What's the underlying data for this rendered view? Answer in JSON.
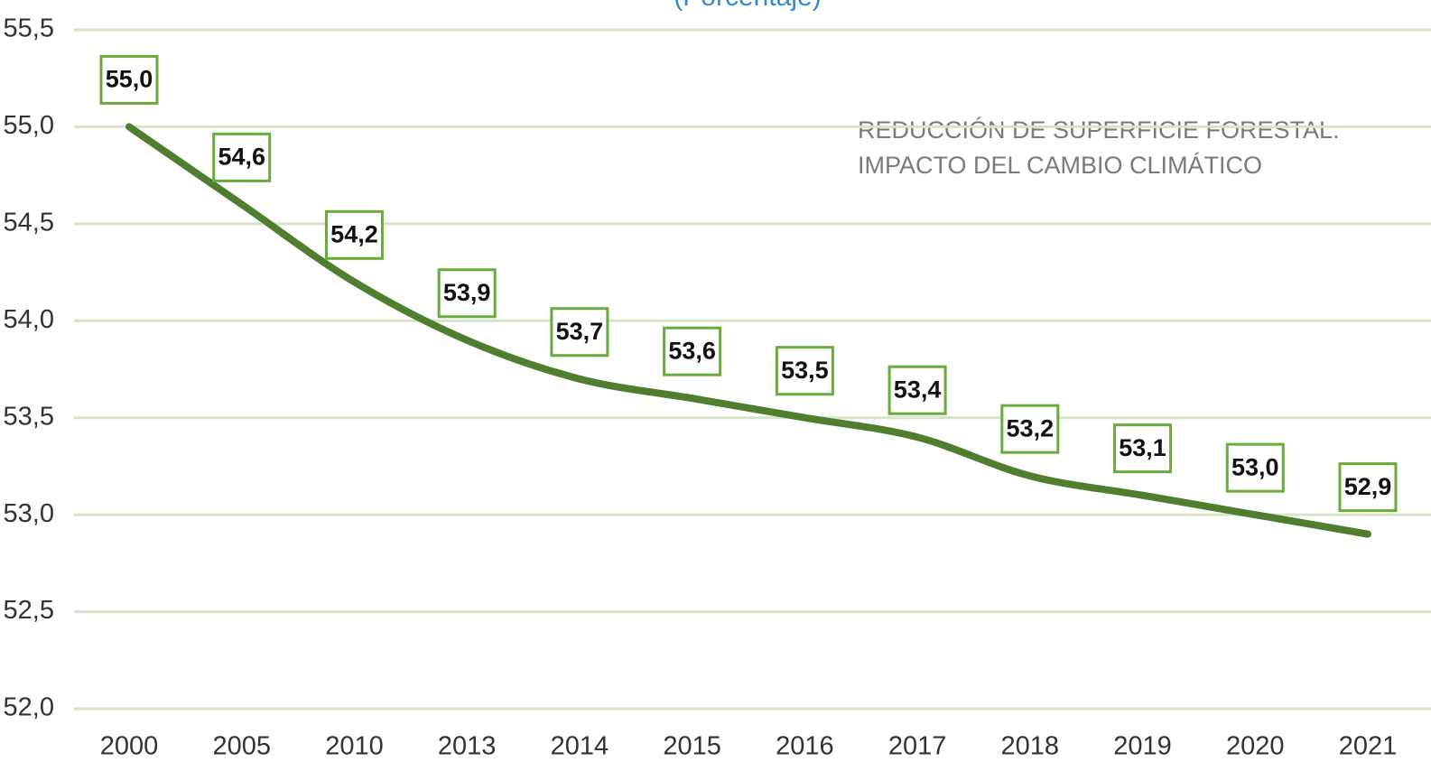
{
  "chart_data": {
    "type": "line",
    "subtitle": "(Porcentaje)",
    "annotation": [
      "REDUCCIÓN DE SUPERFICIE FORESTAL:",
      "IMPACTO DEL CAMBIO CLIMÁTICO"
    ],
    "categories": [
      "2000",
      "2005",
      "2010",
      "2013",
      "2014",
      "2015",
      "2016",
      "2017",
      "2018",
      "2019",
      "2020",
      "2021"
    ],
    "series": [
      {
        "color": "#4f7f2e",
        "values": [
          55.0,
          54.6,
          54.2,
          53.9,
          53.7,
          53.6,
          53.5,
          53.4,
          53.2,
          53.1,
          53.0,
          52.9
        ],
        "value_labels": [
          "55,0",
          "54,6",
          "54,2",
          "53,9",
          "53,7",
          "53,6",
          "53,5",
          "53,4",
          "53,2",
          "53,1",
          "53,0",
          "52,9"
        ]
      }
    ],
    "label_box_color": "#6aab3d",
    "grid_color": "#d6e4c9",
    "ylim": [
      52,
      55.5
    ],
    "yticks": [
      {
        "value": 52,
        "label": "52,0"
      },
      {
        "value": 52.5,
        "label": "52,5"
      },
      {
        "value": 53,
        "label": "53,0"
      },
      {
        "value": 53.5,
        "label": "53,5"
      },
      {
        "value": 54,
        "label": "54,0"
      },
      {
        "value": 54.5,
        "label": "54,5"
      },
      {
        "value": 55,
        "label": "55,0"
      },
      {
        "value": 55.5,
        "label": "55,5"
      }
    ],
    "grid": true
  }
}
